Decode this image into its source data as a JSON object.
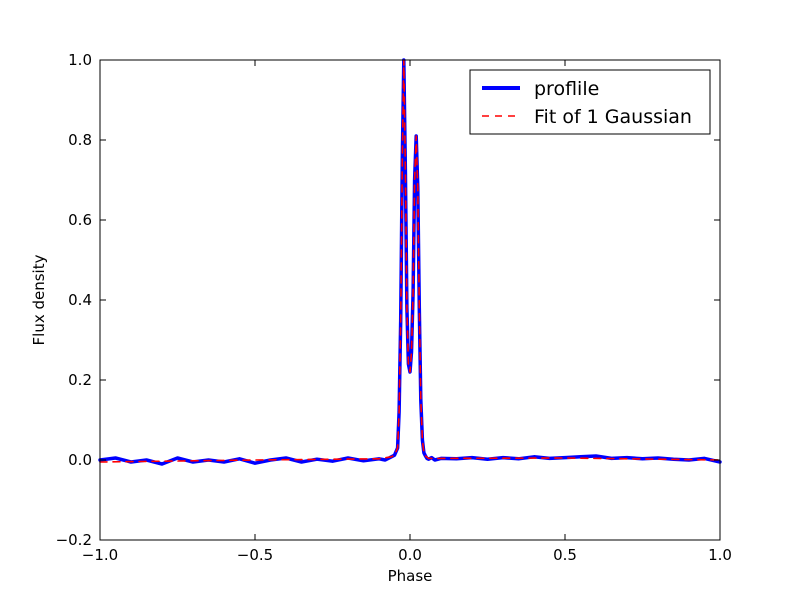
{
  "chart_data": {
    "type": "line",
    "title": "",
    "xlabel": "Phase",
    "ylabel": "Flux density",
    "xlim": [
      -1.0,
      1.0
    ],
    "ylim": [
      -0.2,
      1.0
    ],
    "x_ticks": [
      -1.0,
      -0.5,
      0.0,
      0.5,
      1.0
    ],
    "x_tick_labels": [
      "−1.0",
      "−0.5",
      "0.0",
      "0.5",
      "1.0"
    ],
    "y_ticks": [
      -0.2,
      0.0,
      0.2,
      0.4,
      0.6,
      0.8,
      1.0
    ],
    "y_tick_labels": [
      "−0.2",
      "0.0",
      "0.2",
      "0.4",
      "0.6",
      "0.8",
      "1.0"
    ],
    "grid": false,
    "legend_position": "top-right",
    "series": [
      {
        "name": "proflile",
        "color": "#0000ff",
        "style": "solid",
        "x": [
          -1.0,
          -0.95,
          -0.9,
          -0.85,
          -0.8,
          -0.75,
          -0.7,
          -0.65,
          -0.6,
          -0.55,
          -0.5,
          -0.45,
          -0.4,
          -0.35,
          -0.3,
          -0.25,
          -0.2,
          -0.15,
          -0.1,
          -0.08,
          -0.06,
          -0.05,
          -0.04,
          -0.035,
          -0.03,
          -0.025,
          -0.02,
          -0.015,
          -0.01,
          -0.005,
          0.0,
          0.005,
          0.01,
          0.015,
          0.02,
          0.025,
          0.03,
          0.035,
          0.04,
          0.045,
          0.05,
          0.055,
          0.06,
          0.07,
          0.08,
          0.1,
          0.15,
          0.2,
          0.25,
          0.3,
          0.35,
          0.4,
          0.45,
          0.5,
          0.55,
          0.6,
          0.65,
          0.7,
          0.75,
          0.8,
          0.85,
          0.9,
          0.95,
          1.0
        ],
        "y": [
          0.0,
          0.005,
          -0.005,
          0.0,
          -0.01,
          0.005,
          -0.005,
          0.0,
          -0.005,
          0.003,
          -0.008,
          0.0,
          0.005,
          -0.005,
          0.002,
          -0.003,
          0.005,
          -0.002,
          0.003,
          0.0,
          0.008,
          0.012,
          0.03,
          0.12,
          0.35,
          0.75,
          1.0,
          0.72,
          0.38,
          0.24,
          0.22,
          0.27,
          0.42,
          0.7,
          0.81,
          0.68,
          0.38,
          0.15,
          0.05,
          0.018,
          0.01,
          0.004,
          0.002,
          0.006,
          0.0,
          0.004,
          0.003,
          0.006,
          0.002,
          0.006,
          0.003,
          0.008,
          0.004,
          0.006,
          0.008,
          0.01,
          0.004,
          0.006,
          0.003,
          0.005,
          0.002,
          0.0,
          0.004,
          -0.005
        ]
      },
      {
        "name": "Fit of 1 Gaussian",
        "color": "#ff0000",
        "style": "dashed",
        "x": [
          -1.0,
          -0.5,
          -0.1,
          -0.06,
          -0.05,
          -0.04,
          -0.035,
          -0.03,
          -0.025,
          -0.02,
          -0.015,
          -0.01,
          -0.005,
          0.0,
          0.005,
          0.01,
          0.015,
          0.02,
          0.025,
          0.03,
          0.035,
          0.04,
          0.045,
          0.05,
          0.06,
          0.1,
          0.5,
          1.0
        ],
        "y": [
          -0.005,
          0.0,
          0.003,
          0.008,
          0.012,
          0.03,
          0.12,
          0.35,
          0.75,
          1.0,
          0.72,
          0.38,
          0.24,
          0.22,
          0.27,
          0.42,
          0.7,
          0.81,
          0.68,
          0.38,
          0.15,
          0.05,
          0.018,
          0.01,
          0.004,
          0.004,
          0.005,
          0.0
        ]
      }
    ]
  }
}
